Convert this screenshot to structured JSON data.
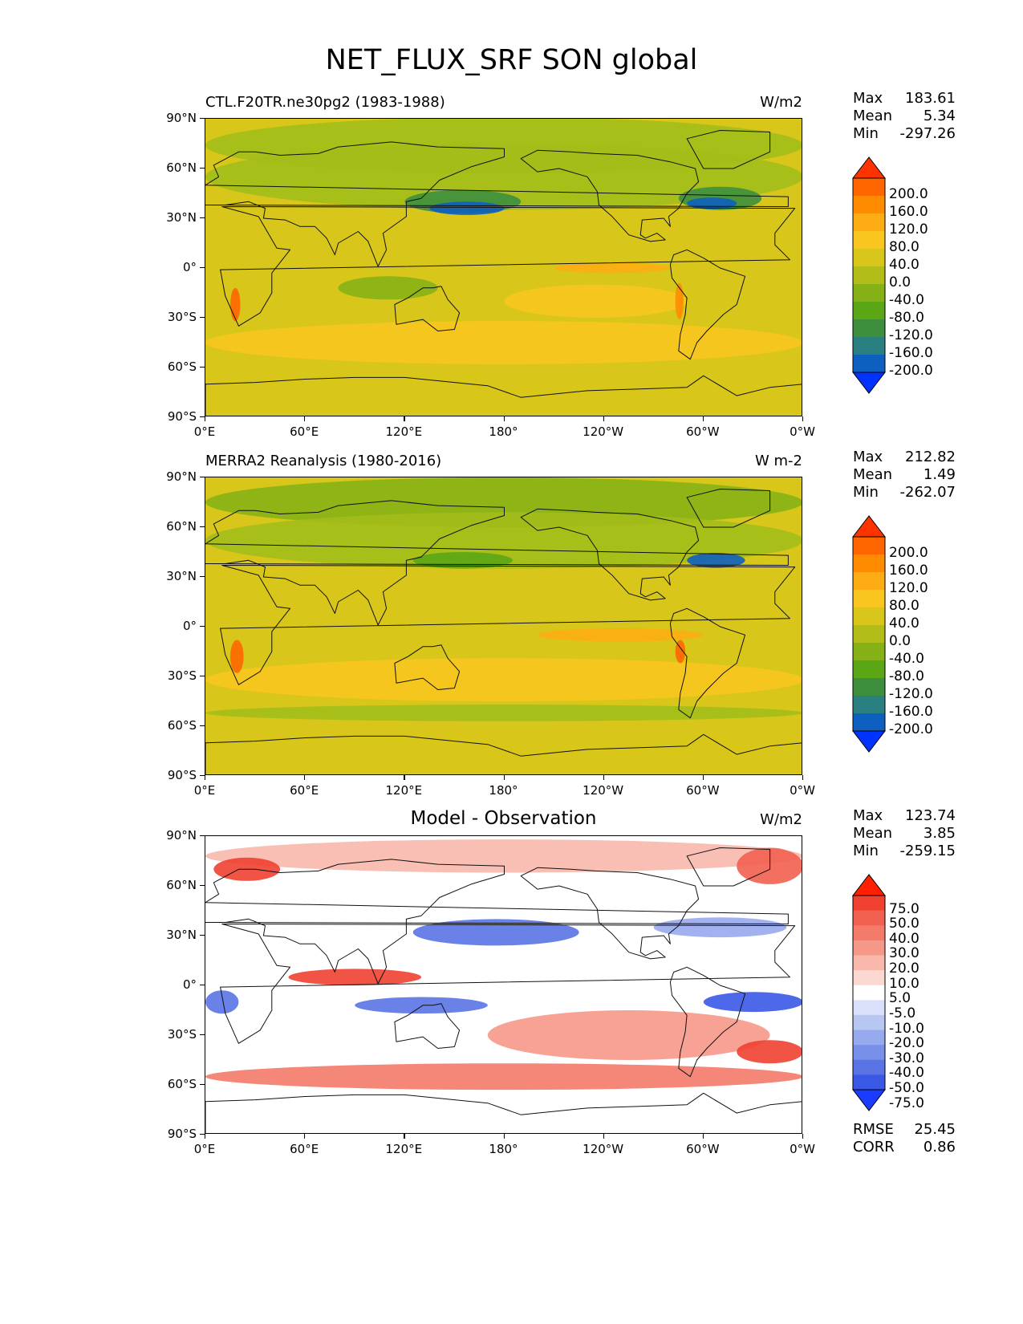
{
  "title": "NET_FLUX_SRF SON global",
  "lat_ticks": [
    "90°N",
    "60°N",
    "30°N",
    "0°",
    "30°S",
    "60°S",
    "90°S"
  ],
  "lon_ticks": [
    "0°E",
    "60°E",
    "120°E",
    "180°",
    "120°W",
    "60°W",
    "0°W"
  ],
  "panels": [
    {
      "left_title": "CTL.F20TR.ne30pg2 (1983-1988)",
      "center_title": "",
      "units": "W/m2",
      "stats": {
        "max_label": "Max",
        "max": "183.61",
        "mean_label": "Mean",
        "mean": "5.34",
        "min_label": "Min",
        "min": "-297.26"
      },
      "colorbar_labels": [
        "200.0",
        "160.0",
        "120.0",
        "80.0",
        "40.0",
        "0.0",
        "-40.0",
        "-80.0",
        "-120.0",
        "-160.0",
        "-200.0"
      ],
      "colorbar_colors": [
        "#ff3300",
        "#ff6600",
        "#ff8c00",
        "#fdad13",
        "#f8c61f",
        "#d8c61a",
        "#b3bd19",
        "#86b116",
        "#5aa615",
        "#3d8f3e",
        "#2a7f80",
        "#0d5fc0",
        "#0033ff"
      ]
    },
    {
      "left_title": "MERRA2 Reanalysis (1980-2016)",
      "center_title": "",
      "units": "W m-2",
      "stats": {
        "max_label": "Max",
        "max": "212.82",
        "mean_label": "Mean",
        "mean": "1.49",
        "min_label": "Min",
        "min": "-262.07"
      },
      "colorbar_labels": [
        "200.0",
        "160.0",
        "120.0",
        "80.0",
        "40.0",
        "0.0",
        "-40.0",
        "-80.0",
        "-120.0",
        "-160.0",
        "-200.0"
      ],
      "colorbar_colors": [
        "#ff3300",
        "#ff6600",
        "#ff8c00",
        "#fdad13",
        "#f8c61f",
        "#d8c61a",
        "#b3bd19",
        "#86b116",
        "#5aa615",
        "#3d8f3e",
        "#2a7f80",
        "#0d5fc0",
        "#0033ff"
      ]
    },
    {
      "left_title": "",
      "center_title": "Model - Observation",
      "units": "W/m2",
      "stats": {
        "max_label": "Max",
        "max": "123.74",
        "mean_label": "Mean",
        "mean": "3.85",
        "min_label": "Min",
        "min": "-259.15"
      },
      "colorbar_labels": [
        "75.0",
        "50.0",
        "40.0",
        "30.0",
        "20.0",
        "10.0",
        "5.0",
        "-5.0",
        "-10.0",
        "-20.0",
        "-30.0",
        "-40.0",
        "-50.0",
        "-75.0"
      ],
      "colorbar_colors": [
        "#ff2000",
        "#f04030",
        "#f26050",
        "#f47a6a",
        "#f69888",
        "#f8b8ac",
        "#fbd8d0",
        "#ffffff",
        "#d8e0fa",
        "#b8c6f2",
        "#98aaee",
        "#7890ea",
        "#5a74e6",
        "#3a58e6",
        "#1a3cff"
      ],
      "rmse_label": "RMSE",
      "rmse": "25.45",
      "corr_label": "CORR",
      "corr": "0.86"
    }
  ],
  "fill_colors": {
    "ocean_model": "#a3bd19",
    "ocean_obs": "#a3bd19",
    "diff_bg": "#ffffff"
  }
}
